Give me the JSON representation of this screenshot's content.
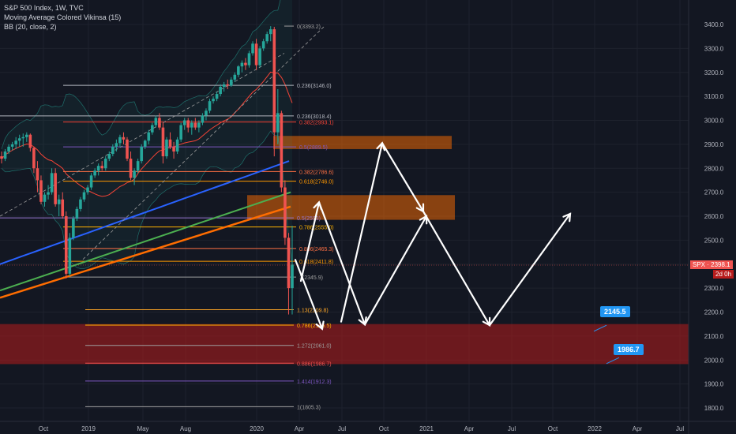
{
  "legend": {
    "line1": "S&P 500 Index, 1W, TVC",
    "line2": "Moving Average Colored Vikinsa (15)",
    "line3": "BB (20, close, 2)"
  },
  "price_tag": {
    "symbol": "SPX",
    "value": "2398.1",
    "countdown": "2d 0h"
  },
  "callouts": [
    {
      "label": "2145.5",
      "color": "#2196f3"
    },
    {
      "label": "1986.7",
      "color": "#2196f3"
    }
  ],
  "colors": {
    "background": "#131722",
    "up_candle": "#26a69a",
    "down_candle": "#ef5350",
    "ma_blue": "#2962ff",
    "ma_green": "#4caf50",
    "ma_orange": "#ff6d00",
    "bb_basis": "#f44336",
    "bb_band": "#26a69a",
    "zone_orange": "#ff6d0099",
    "zone_red": "#b71c1c99",
    "projection": "#ffffff"
  },
  "chart_data": {
    "type": "candlestick",
    "title": "S&P 500 Index, 1W, TVC",
    "y_axis": {
      "ticks": [
        1800.0,
        1900.0,
        2000.0,
        2100.0,
        2200.0,
        2300.0,
        2400.0,
        2500.0,
        2600.0,
        2700.0,
        2800.0,
        2900.0,
        3000.0,
        3100.0,
        3200.0,
        3300.0,
        3400.0
      ],
      "range": [
        1770,
        3570
      ]
    },
    "x_axis": {
      "ticks": [
        "Oct",
        "2019",
        "May",
        "Aug",
        "2020",
        "Apr",
        "Jul",
        "Oct",
        "2021",
        "Apr",
        "Jul",
        "Oct",
        "2022",
        "Apr",
        "Jul"
      ]
    },
    "fib_levels": [
      {
        "label": "0.236(3146.0)",
        "value": 3146.0,
        "color": "#b2b5be"
      },
      {
        "label": "0.236(3018.4)",
        "value": 3018.4,
        "color": "#b2b5be"
      },
      {
        "label": "0.382(2993.1)",
        "value": 2993.1,
        "color": "#f44336"
      },
      {
        "label": "0.5(2889.5)",
        "value": 2889.5,
        "color": "#7e57c2"
      },
      {
        "label": "0.382(2786.6)",
        "value": 2786.6,
        "color": "#ff7043"
      },
      {
        "label": "0.618(2746.0)",
        "value": 2746.0,
        "color": "#ff9800"
      },
      {
        "label": "0.5(2593)",
        "value": 2593.0,
        "color": "#9575cd"
      },
      {
        "label": "0.786(2555.0)",
        "value": 2555.0,
        "color": "#ffb300"
      },
      {
        "label": "0.886(2465.3)",
        "value": 2465.3,
        "color": "#ff7043"
      },
      {
        "label": "0.618(2411.8)",
        "value": 2411.8,
        "color": "#ff9800"
      },
      {
        "label": "1(2345.9)",
        "value": 2345.9,
        "color": "#9e9e9e"
      },
      {
        "label": "1.13(2209.8)",
        "value": 2209.8,
        "color": "#ffa726"
      },
      {
        "label": "0.786(2145.5)",
        "value": 2145.5,
        "color": "#ffb300"
      },
      {
        "label": "1.272(2061.0)",
        "value": 2061.0,
        "color": "#9e9e9e"
      },
      {
        "label": "0.886(1986.7)",
        "value": 1986.7,
        "color": "#ef5350"
      },
      {
        "label": "1.414(1912.3)",
        "value": 1912.3,
        "color": "#7e57c2"
      },
      {
        "label": "1(1805.3)",
        "value": 1805.3,
        "color": "#9e9e9e"
      },
      {
        "label": "0(3393.2)",
        "value": 3393.2,
        "color": "#9e9e9e"
      }
    ],
    "candles": [
      [
        2850,
        2870,
        2820,
        2840
      ],
      [
        2840,
        2880,
        2830,
        2870
      ],
      [
        2870,
        2900,
        2860,
        2890
      ],
      [
        2890,
        2910,
        2875,
        2900
      ],
      [
        2900,
        2930,
        2880,
        2915
      ],
      [
        2915,
        2940,
        2890,
        2925
      ],
      [
        2925,
        2945,
        2890,
        2930
      ],
      [
        2930,
        2950,
        2910,
        2940
      ],
      [
        2940,
        2945,
        2870,
        2885
      ],
      [
        2885,
        2890,
        2780,
        2800
      ],
      [
        2800,
        2830,
        2700,
        2750
      ],
      [
        2750,
        2770,
        2650,
        2660
      ],
      [
        2660,
        2700,
        2640,
        2690
      ],
      [
        2690,
        2730,
        2670,
        2700
      ],
      [
        2700,
        2800,
        2690,
        2780
      ],
      [
        2780,
        2800,
        2640,
        2650
      ],
      [
        2650,
        2690,
        2600,
        2670
      ],
      [
        2670,
        2700,
        2590,
        2600
      ],
      [
        2600,
        2620,
        2340,
        2360
      ],
      [
        2360,
        2530,
        2350,
        2510
      ],
      [
        2510,
        2600,
        2500,
        2590
      ],
      [
        2590,
        2640,
        2580,
        2630
      ],
      [
        2630,
        2680,
        2620,
        2670
      ],
      [
        2670,
        2710,
        2660,
        2700
      ],
      [
        2700,
        2730,
        2690,
        2720
      ],
      [
        2720,
        2780,
        2710,
        2770
      ],
      [
        2770,
        2800,
        2760,
        2790
      ],
      [
        2790,
        2820,
        2770,
        2810
      ],
      [
        2810,
        2830,
        2790,
        2800
      ],
      [
        2800,
        2850,
        2790,
        2840
      ],
      [
        2840,
        2870,
        2830,
        2860
      ],
      [
        2860,
        2900,
        2850,
        2890
      ],
      [
        2890,
        2920,
        2870,
        2905
      ],
      [
        2905,
        2940,
        2890,
        2930
      ],
      [
        2930,
        2950,
        2900,
        2920
      ],
      [
        2920,
        2930,
        2830,
        2840
      ],
      [
        2840,
        2870,
        2750,
        2760
      ],
      [
        2760,
        2800,
        2730,
        2790
      ],
      [
        2790,
        2840,
        2780,
        2830
      ],
      [
        2830,
        2900,
        2820,
        2890
      ],
      [
        2890,
        2920,
        2880,
        2915
      ],
      [
        2915,
        2960,
        2900,
        2950
      ],
      [
        2950,
        2990,
        2940,
        2980
      ],
      [
        2980,
        3020,
        2970,
        3010
      ],
      [
        3010,
        3030,
        2960,
        2970
      ],
      [
        2970,
        2990,
        2820,
        2850
      ],
      [
        2850,
        2930,
        2840,
        2920
      ],
      [
        2920,
        2950,
        2880,
        2890
      ],
      [
        2890,
        2910,
        2840,
        2870
      ],
      [
        2870,
        2930,
        2860,
        2920
      ],
      [
        2920,
        2990,
        2910,
        2980
      ],
      [
        2980,
        3010,
        2960,
        3000
      ],
      [
        3000,
        3010,
        2950,
        2970
      ],
      [
        2970,
        3000,
        2940,
        2990
      ],
      [
        2990,
        3010,
        2960,
        2970
      ],
      [
        2970,
        3000,
        2950,
        2990
      ],
      [
        2990,
        3030,
        2980,
        3020
      ],
      [
        3020,
        3050,
        3000,
        3040
      ],
      [
        3040,
        3090,
        3030,
        3080
      ],
      [
        3080,
        3100,
        3070,
        3090
      ],
      [
        3090,
        3120,
        3080,
        3110
      ],
      [
        3110,
        3150,
        3100,
        3140
      ],
      [
        3140,
        3160,
        3120,
        3150
      ],
      [
        3150,
        3170,
        3130,
        3145
      ],
      [
        3145,
        3180,
        3140,
        3170
      ],
      [
        3170,
        3200,
        3160,
        3190
      ],
      [
        3190,
        3230,
        3180,
        3225
      ],
      [
        3225,
        3250,
        3200,
        3240
      ],
      [
        3240,
        3260,
        3210,
        3230
      ],
      [
        3230,
        3290,
        3220,
        3280
      ],
      [
        3280,
        3330,
        3270,
        3320
      ],
      [
        3320,
        3340,
        3210,
        3230
      ],
      [
        3230,
        3310,
        3220,
        3300
      ],
      [
        3300,
        3340,
        3290,
        3330
      ],
      [
        3330,
        3370,
        3320,
        3360
      ],
      [
        3360,
        3393,
        3330,
        3380
      ],
      [
        3380,
        3390,
        2850,
        2950
      ],
      [
        2950,
        3130,
        2900,
        3030
      ],
      [
        3030,
        3040,
        2700,
        2720
      ],
      [
        2720,
        2750,
        2480,
        2510
      ],
      [
        2510,
        2530,
        2190,
        2300
      ],
      [
        2300,
        2560,
        2190,
        2398
      ]
    ],
    "ma_blue": [
      2400,
      2410,
      2420,
      2430,
      2440,
      2450,
      2460,
      2470,
      2480,
      2490,
      2500,
      2510,
      2520,
      2530,
      2540,
      2550,
      2560,
      2570,
      2580,
      2590,
      2600,
      2610,
      2620,
      2630,
      2640,
      2650,
      2660,
      2670,
      2680,
      2690,
      2700,
      2710,
      2720,
      2730,
      2740,
      2750,
      2760,
      2770,
      2780,
      2790,
      2800,
      2810,
      2820,
      2830
    ],
    "ma_green_start": 2290,
    "ma_green_end": 2700,
    "ma_orange_start": 2260,
    "ma_orange_end": 2640,
    "projection_path": [
      [
        "2020-03",
        2420
      ],
      [
        "2020-04",
        2190
      ],
      [
        "2020-05",
        2660
      ],
      [
        "2020-06",
        2145.5
      ],
      [
        "2020-07",
        2900
      ],
      [
        "2020-08",
        2145.5
      ],
      [
        "2020-09",
        2600
      ],
      [
        "2020-10",
        2145.5
      ],
      [
        "2020-11",
        2610
      ]
    ]
  }
}
